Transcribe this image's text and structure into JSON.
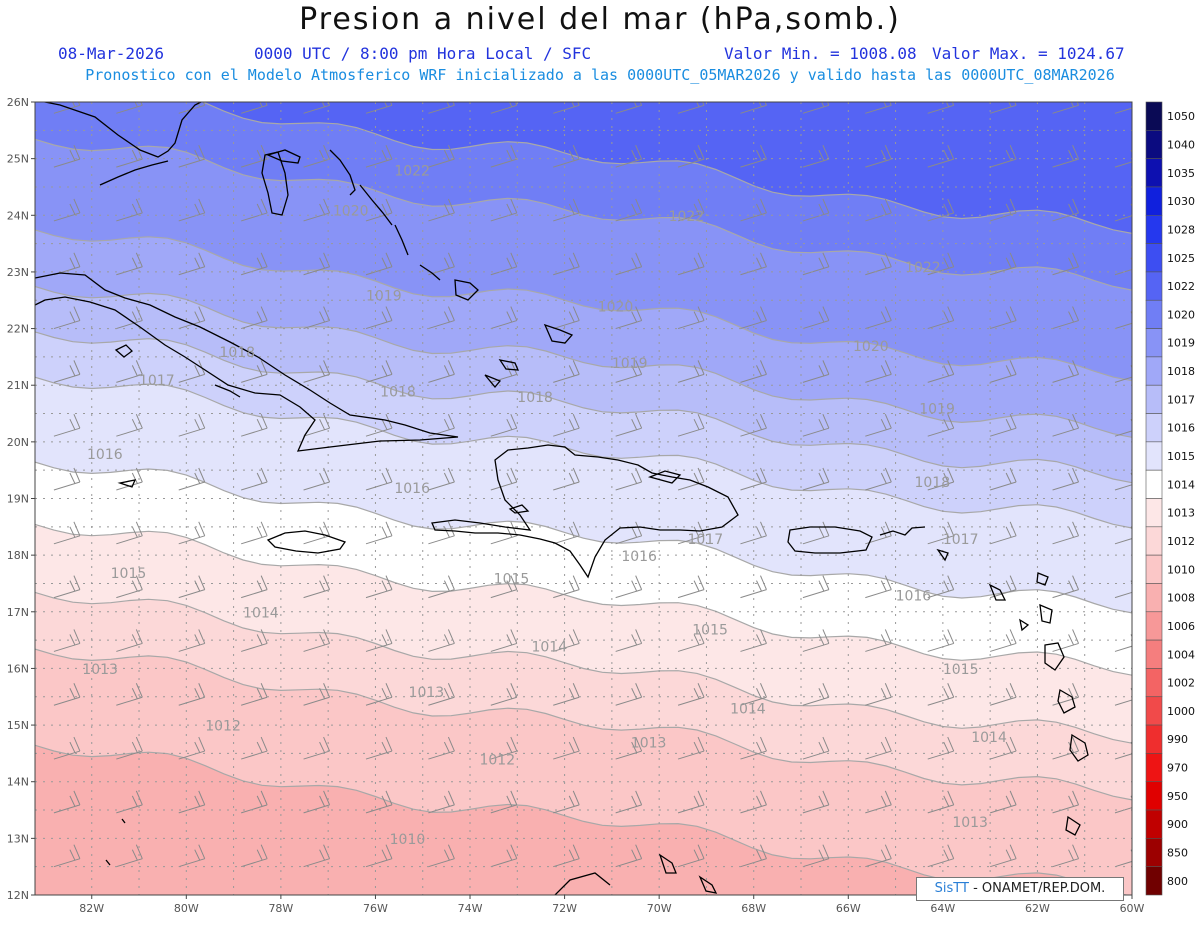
{
  "header": {
    "title": "Presion a nivel del mar (hPa,somb.)",
    "date": "08-Mar-2026",
    "time_info": "0000 UTC / 8:00 pm Hora Local / SFC",
    "min_value": "Valor Min. = 1008.08",
    "max_value": "Valor Max. = 1024.67",
    "model_info": "Pronostico con el Modelo Atmosferico WRF inicializado a las 0000UTC_05MAR2026 y valido hasta las  0000UTC_08MAR2026"
  },
  "map": {
    "lon_range": [
      -83.2,
      -60
    ],
    "lat_range": [
      12,
      26
    ],
    "lat_labels": [
      "26N",
      "25N",
      "24N",
      "23N",
      "22N",
      "21N",
      "20N",
      "19N",
      "18N",
      "17N",
      "16N",
      "15N",
      "14N",
      "13N",
      "12N"
    ],
    "lon_labels": [
      "82W",
      "80W",
      "78W",
      "76W",
      "74W",
      "72W",
      "70W",
      "68W",
      "66W",
      "64W",
      "62W",
      "60W"
    ],
    "contours": [
      {
        "label": "1022",
        "lat": 25.0
      },
      {
        "label": "1020",
        "lat": 24.0
      },
      {
        "label": "1019",
        "lat": 22.4
      },
      {
        "label": "1018",
        "lat": 21.4
      },
      {
        "label": "1017",
        "lat": 20.6
      },
      {
        "label": "1016",
        "lat": 19.8
      },
      {
        "label": "1015",
        "lat": 18.3
      },
      {
        "label": "1014",
        "lat": 17.2
      },
      {
        "label": "1013",
        "lat": 16.0
      },
      {
        "label": "1012",
        "lat": 15.0
      },
      {
        "label": "1010",
        "lat": 13.3
      }
    ],
    "contour_labels": [
      {
        "text": "1022",
        "lon": -75.6,
        "lat": 24.7
      },
      {
        "text": "1022",
        "lon": -69.8,
        "lat": 23.9
      },
      {
        "text": "1022",
        "lon": -64.8,
        "lat": 23.0
      },
      {
        "text": "1020",
        "lon": -76.9,
        "lat": 24.0
      },
      {
        "text": "1020",
        "lon": -71.3,
        "lat": 22.3
      },
      {
        "text": "1020",
        "lon": -65.9,
        "lat": 21.6
      },
      {
        "text": "1019",
        "lon": -76.2,
        "lat": 22.5
      },
      {
        "text": "1019",
        "lon": -71.0,
        "lat": 21.3
      },
      {
        "text": "1019",
        "lon": -64.5,
        "lat": 20.5
      },
      {
        "text": "1018",
        "lon": -79.3,
        "lat": 21.5
      },
      {
        "text": "1018",
        "lon": -75.9,
        "lat": 20.8
      },
      {
        "text": "1018",
        "lon": -73.0,
        "lat": 20.7
      },
      {
        "text": "1018",
        "lon": -64.6,
        "lat": 19.2
      },
      {
        "text": "1017",
        "lon": -81.0,
        "lat": 21.0
      },
      {
        "text": "1017",
        "lon": -69.4,
        "lat": 18.2
      },
      {
        "text": "1017",
        "lon": -64.0,
        "lat": 18.2
      },
      {
        "text": "1016",
        "lon": -82.1,
        "lat": 19.7
      },
      {
        "text": "1016",
        "lon": -75.6,
        "lat": 19.1
      },
      {
        "text": "1016",
        "lon": -70.8,
        "lat": 17.9
      },
      {
        "text": "1016",
        "lon": -65.0,
        "lat": 17.2
      },
      {
        "text": "1015",
        "lon": -81.6,
        "lat": 17.6
      },
      {
        "text": "1015",
        "lon": -73.5,
        "lat": 17.5
      },
      {
        "text": "1015",
        "lon": -69.3,
        "lat": 16.6
      },
      {
        "text": "1015",
        "lon": -64.0,
        "lat": 15.9
      },
      {
        "text": "1014",
        "lon": -78.8,
        "lat": 16.9
      },
      {
        "text": "1014",
        "lon": -72.7,
        "lat": 16.3
      },
      {
        "text": "1014",
        "lon": -68.5,
        "lat": 15.2
      },
      {
        "text": "1014",
        "lon": -63.4,
        "lat": 14.7
      },
      {
        "text": "1013",
        "lon": -82.2,
        "lat": 15.9
      },
      {
        "text": "1013",
        "lon": -75.3,
        "lat": 15.5
      },
      {
        "text": "1013",
        "lon": -70.6,
        "lat": 14.6
      },
      {
        "text": "1013",
        "lon": -63.8,
        "lat": 13.2
      },
      {
        "text": "1012",
        "lon": -79.6,
        "lat": 14.9
      },
      {
        "text": "1012",
        "lon": -73.8,
        "lat": 14.3
      },
      {
        "text": "1010",
        "lon": -75.7,
        "lat": 12.9
      }
    ],
    "colorbar": [
      {
        "label": "1050",
        "color": "#0a0a55"
      },
      {
        "label": "1040",
        "color": "#0b0b80"
      },
      {
        "label": "1035",
        "color": "#0d10b0"
      },
      {
        "label": "1030",
        "color": "#1020dd"
      },
      {
        "label": "1028",
        "color": "#2538ee"
      },
      {
        "label": "1025",
        "color": "#3d4ef2"
      },
      {
        "label": "1022",
        "color": "#5564f4"
      },
      {
        "label": "1020",
        "color": "#707ef5"
      },
      {
        "label": "1019",
        "color": "#8893f6"
      },
      {
        "label": "1018",
        "color": "#a0a8f8"
      },
      {
        "label": "1017",
        "color": "#b7bdf9"
      },
      {
        "label": "1016",
        "color": "#cdd1fb"
      },
      {
        "label": "1015",
        "color": "#e2e4fc"
      },
      {
        "label": "1014",
        "color": "#ffffff"
      },
      {
        "label": "1013",
        "color": "#fde7e7"
      },
      {
        "label": "1012",
        "color": "#fcd8d8"
      },
      {
        "label": "1010",
        "color": "#fbc7c7"
      },
      {
        "label": "1008",
        "color": "#f9b0b0"
      },
      {
        "label": "1006",
        "color": "#f79898"
      },
      {
        "label": "1004",
        "color": "#f57e7e"
      },
      {
        "label": "1002",
        "color": "#f36464"
      },
      {
        "label": "1000",
        "color": "#f14a4a"
      },
      {
        "label": "990",
        "color": "#ef2e2e"
      },
      {
        "label": "970",
        "color": "#ee1414"
      },
      {
        "label": "950",
        "color": "#e00000"
      },
      {
        "label": "900",
        "color": "#c00000"
      },
      {
        "label": "850",
        "color": "#9c0000"
      },
      {
        "label": "800",
        "color": "#700000"
      }
    ]
  },
  "credit": {
    "brand": "SisTT",
    "text": " - ONAMET/REP.DOM."
  }
}
